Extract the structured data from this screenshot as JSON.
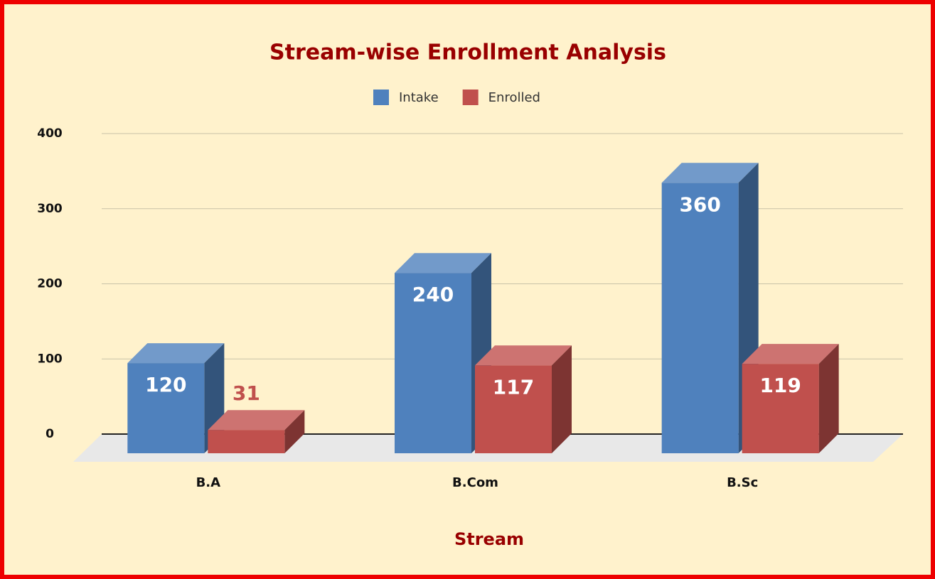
{
  "chart_data": {
    "type": "bar3d",
    "title": "Stream-wise Enrollment Analysis",
    "x_label": "Stream",
    "categories": [
      "B.A",
      "B.Com",
      "B.Sc"
    ],
    "series": [
      {
        "name": "Intake",
        "color": "#4f81bd",
        "values": [
          120,
          240,
          360
        ]
      },
      {
        "name": "Enrolled",
        "color": "#c0504d",
        "values": [
          31,
          117,
          119
        ]
      }
    ],
    "ylim": [
      0,
      400
    ],
    "yticks": [
      0,
      100,
      200,
      300,
      400
    ],
    "grid": true,
    "legend": "top"
  }
}
